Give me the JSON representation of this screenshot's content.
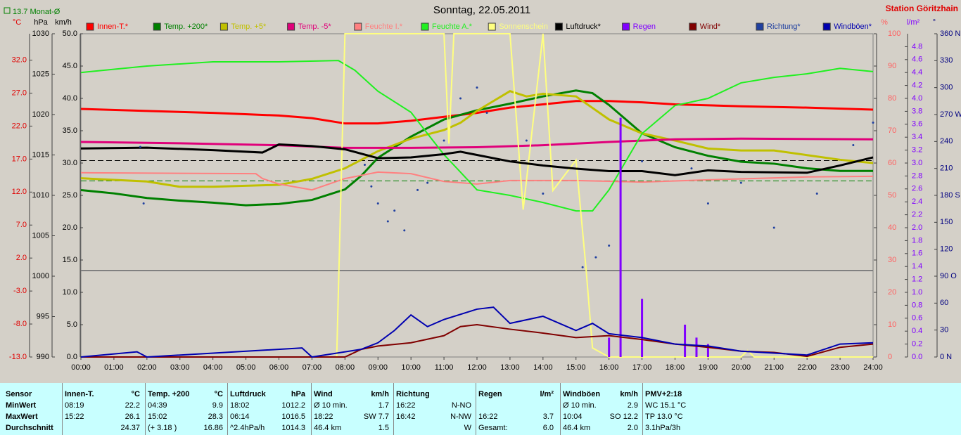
{
  "chart_data": {
    "type": "line",
    "title": "Sonntag, 22.05.2011",
    "station": "Station Göritzhain",
    "monthly_avg": {
      "value": 13.7,
      "label": "Monat-Ø"
    },
    "pressure_avg": 1014.3,
    "xlim": [
      0,
      24
    ],
    "xticks": [
      {
        "value": 0,
        "label": "00:00"
      },
      {
        "value": 1,
        "label": "01:00"
      },
      {
        "value": 2,
        "label": "02:00"
      },
      {
        "value": 3,
        "label": "03:00"
      },
      {
        "value": 4,
        "label": "04:00"
      },
      {
        "value": 5,
        "label": "05:00"
      },
      {
        "value": 6,
        "label": "06:00"
      },
      {
        "value": 7,
        "label": "07:00"
      },
      {
        "value": 8,
        "label": "08:00"
      },
      {
        "value": 9,
        "label": "09:00"
      },
      {
        "value": 10,
        "label": "10:00"
      },
      {
        "value": 11,
        "label": "11:00"
      },
      {
        "value": 12,
        "label": "12:00"
      },
      {
        "value": 13,
        "label": "13:00"
      },
      {
        "value": 14,
        "label": "14:00"
      },
      {
        "value": 15,
        "label": "15:00"
      },
      {
        "value": 16,
        "label": "16:00"
      },
      {
        "value": 17,
        "label": "17:00"
      },
      {
        "value": 18,
        "label": "18:00"
      },
      {
        "value": 19,
        "label": "19:00"
      },
      {
        "value": 20,
        "label": "20:00"
      },
      {
        "value": 21,
        "label": "21:00"
      },
      {
        "value": 22,
        "label": "22:00"
      },
      {
        "value": 23,
        "label": "23:00"
      },
      {
        "value": 24,
        "label": "24:00"
      }
    ],
    "axes": [
      {
        "label": "°C",
        "color": "#e00000",
        "ylim": [
          -13,
          36
        ],
        "yticks": [
          {
            "value": -13,
            "label": "-13.0"
          },
          {
            "value": -8,
            "label": "-8.0"
          },
          {
            "value": -3,
            "label": "-3.0"
          },
          {
            "value": 2,
            "label": "2.0"
          },
          {
            "value": 7,
            "label": "7.0"
          },
          {
            "value": 12,
            "label": "12.0"
          },
          {
            "value": 17,
            "label": "17.0"
          },
          {
            "value": 22,
            "label": "22.0"
          },
          {
            "value": 27,
            "label": "27.0"
          },
          {
            "value": 32,
            "label": "32.0"
          }
        ]
      },
      {
        "label": "hPa",
        "color": "#000000",
        "ylim": [
          990,
          1030
        ],
        "yticks": [
          990,
          995,
          1000,
          1005,
          1010,
          1015,
          1020,
          1025,
          1030
        ]
      },
      {
        "label": "km/h",
        "color": "#000000",
        "ylim": [
          0,
          50
        ],
        "yticks": [
          {
            "value": 0,
            "label": "0.0"
          },
          {
            "value": 5,
            "label": "5.0"
          },
          {
            "value": 10,
            "label": "10.0"
          },
          {
            "value": 15,
            "label": "15.0"
          },
          {
            "value": 20,
            "label": "20.0"
          },
          {
            "value": 25,
            "label": "25.0"
          },
          {
            "value": 30,
            "label": "30.0"
          },
          {
            "value": 35,
            "label": "35.0"
          },
          {
            "value": 40,
            "label": "40.0"
          },
          {
            "value": 45,
            "label": "45.0"
          },
          {
            "value": 50,
            "label": "50.0"
          }
        ]
      },
      {
        "label": "%",
        "color": "#ff6060",
        "ylim": [
          0,
          100
        ],
        "yticks": [
          0,
          10,
          20,
          30,
          40,
          50,
          60,
          70,
          80,
          90,
          100
        ]
      },
      {
        "label": "l/m²",
        "color": "#8000ff",
        "ylim": [
          0,
          5
        ],
        "yticks": [
          {
            "value": 0,
            "label": "0.0"
          },
          0.2,
          0.4,
          0.6,
          0.8,
          {
            "value": 1,
            "label": "1.0"
          },
          1.2,
          1.4,
          1.6,
          1.8,
          {
            "value": 2,
            "label": "2.0"
          },
          2.2,
          2.4,
          2.6,
          2.8,
          {
            "value": 3,
            "label": "3.0"
          },
          3.2,
          3.4,
          3.6,
          3.8,
          {
            "value": 4,
            "label": "4.0"
          },
          4.2,
          4.4,
          4.6,
          4.8
        ]
      },
      {
        "label": "°",
        "color": "#000080",
        "ylim": [
          0,
          360
        ],
        "yticks": [
          {
            "value": 0,
            "label": "0 N"
          },
          30,
          60,
          {
            "value": 90,
            "label": "90 O"
          },
          120,
          150,
          {
            "value": 180,
            "label": "180 S"
          },
          210,
          240,
          {
            "value": 270,
            "label": "270 W"
          },
          300,
          330,
          {
            "value": 360,
            "label": "360 N"
          }
        ]
      }
    ],
    "series": [
      {
        "name": "Innen-T.*",
        "color": "#ff0000",
        "axis": "°C",
        "x": [
          0,
          2,
          4,
          6,
          7,
          8,
          9,
          10,
          11,
          12,
          13,
          14,
          15,
          16,
          17,
          18,
          20,
          22,
          24
        ],
        "values": [
          24.6,
          24.3,
          24.0,
          23.6,
          23.2,
          22.4,
          22.4,
          22.8,
          23.4,
          24.0,
          24.8,
          25.3,
          25.8,
          25.8,
          25.6,
          25.3,
          25.0,
          24.8,
          24.5
        ]
      },
      {
        "name": "Temp. +200*",
        "color": "#008000",
        "axis": "°C",
        "x": [
          0,
          1,
          2,
          3,
          4,
          5,
          6,
          7,
          8,
          8.5,
          9,
          10,
          11,
          12,
          13,
          14,
          15,
          15.5,
          16,
          17,
          18,
          19,
          20,
          21,
          22,
          23,
          24
        ],
        "values": [
          12.3,
          11.8,
          11.1,
          10.7,
          10.4,
          10.0,
          10.2,
          10.8,
          12.4,
          14.5,
          17.2,
          20.4,
          23.0,
          24.4,
          25.4,
          26.5,
          27.4,
          27.0,
          25.2,
          20.9,
          18.8,
          17.5,
          16.6,
          16.3,
          15.6,
          15.2,
          15.2
        ]
      },
      {
        "name": "Temp. +5*",
        "color": "#c0c000",
        "axis": "°C",
        "x": [
          0,
          2,
          3,
          4,
          6,
          7,
          8,
          9,
          10,
          11,
          11.5,
          12,
          12.5,
          13,
          13.5,
          14,
          15,
          16,
          17,
          18,
          19,
          20,
          21,
          22,
          23,
          24
        ],
        "values": [
          14.1,
          13.6,
          12.8,
          12.8,
          13.1,
          14.0,
          15.6,
          18.2,
          20.1,
          21.4,
          22.5,
          24.3,
          25.8,
          27.3,
          26.5,
          26.9,
          26.5,
          23.0,
          20.9,
          19.8,
          18.6,
          18.3,
          18.3,
          17.6,
          16.9,
          16.4
        ]
      },
      {
        "name": "Temp. -5*",
        "color": "#e0007a",
        "axis": "°C",
        "x": [
          0,
          3,
          6,
          8,
          10,
          12,
          14,
          16,
          18,
          20,
          24
        ],
        "values": [
          19.6,
          19.4,
          19.1,
          18.7,
          18.7,
          18.8,
          19.1,
          19.6,
          20.0,
          20.1,
          20.0
        ]
      },
      {
        "name": "Feuchte I.*",
        "color": "#ff8080",
        "axis": "%",
        "x": [
          0,
          5.3,
          5.5,
          6,
          7,
          8,
          9,
          10,
          11,
          12,
          13,
          15,
          17,
          19,
          22,
          24
        ],
        "values": [
          57.0,
          56.7,
          55.2,
          53.5,
          51.7,
          55.2,
          57.2,
          56.7,
          54.3,
          53.5,
          54.6,
          54.6,
          54.1,
          54.8,
          55.7,
          55.9
        ]
      },
      {
        "name": "Feuchte A.*",
        "color": "#20f020",
        "axis": "%",
        "x": [
          0,
          2,
          4,
          6,
          7.8,
          8.3,
          9,
          10,
          10.5,
          11,
          11.5,
          12,
          13,
          14,
          15,
          15.5,
          16,
          17,
          18,
          19,
          20,
          21,
          22,
          23,
          24
        ],
        "values": [
          88.0,
          90.0,
          91.3,
          91.3,
          91.7,
          88.7,
          82.2,
          75.7,
          69.1,
          62.6,
          57.2,
          51.7,
          50.0,
          47.8,
          45.2,
          45.2,
          51.7,
          69.1,
          77.8,
          80.0,
          84.8,
          86.5,
          87.6,
          89.3,
          88.3
        ]
      },
      {
        "name": "Sonnenschein",
        "color": "#ffff80",
        "axis": "%",
        "x": [
          0,
          7.75,
          8,
          11,
          11.15,
          11.3,
          13,
          13.4,
          14,
          14.3,
          15,
          15.3,
          15.5,
          16,
          20,
          20.2,
          20.4,
          24
        ],
        "values": [
          0,
          0,
          100,
          100,
          66,
          100,
          100,
          45.6,
          100,
          51.5,
          60.9,
          27.8,
          2.8,
          0,
          0,
          2,
          0,
          0
        ]
      },
      {
        "name": "Luftdruck*",
        "color": "#000000",
        "axis": "hPa",
        "x": [
          0,
          2,
          4,
          5.5,
          6,
          7,
          8,
          9,
          10,
          11,
          11.5,
          12,
          13,
          14,
          15,
          16,
          17,
          18,
          19,
          20,
          22,
          23,
          24
        ],
        "values": [
          1015.8,
          1015.9,
          1015.6,
          1015.3,
          1016.3,
          1016.1,
          1015.7,
          1014.6,
          1014.7,
          1015.1,
          1015.4,
          1015.0,
          1014.2,
          1013.7,
          1013.3,
          1013.0,
          1013.0,
          1012.5,
          1013.1,
          1012.9,
          1012.8,
          1013.7,
          1014.7
        ]
      },
      {
        "name": "Regen",
        "color": "#8000ff",
        "axis": "l/m²",
        "type": "bar",
        "x": [
          16.0,
          16.35,
          17.0,
          18.3,
          18.65,
          19.0
        ],
        "values": [
          0.3,
          3.7,
          0.9,
          0.5,
          0.3,
          0.2
        ]
      },
      {
        "name": "Wind*",
        "color": "#800000",
        "axis": "km/h",
        "x": [
          0,
          8,
          8.5,
          9,
          10,
          11,
          11.5,
          12,
          13,
          14,
          15,
          16,
          17,
          18,
          19,
          20,
          21,
          22,
          23,
          24
        ],
        "values": [
          0,
          0,
          1.2,
          1.7,
          2.2,
          3.3,
          4.7,
          5.0,
          4.3,
          3.7,
          3.0,
          3.3,
          2.7,
          2.0,
          1.5,
          0.9,
          0.7,
          0.1,
          1.5,
          2.0
        ]
      },
      {
        "name": "Richtung*",
        "color": "#2040a0",
        "axis": "°",
        "type": "scatter",
        "x": [
          1.8,
          1.9,
          8.6,
          8.8,
          9.0,
          9.3,
          9.5,
          9.8,
          10.2,
          10.5,
          11.0,
          11.5,
          12.0,
          12.3,
          13.5,
          14.0,
          15.2,
          15.6,
          16.0,
          17.0,
          18.5,
          19.0,
          20.0,
          21.0,
          22.3,
          23.4,
          24
        ],
        "values": [
          234,
          171,
          214,
          190,
          171,
          151,
          163,
          141,
          186,
          194,
          241,
          288,
          300,
          272,
          241,
          182,
          100,
          111,
          124,
          218,
          210,
          171,
          194,
          144,
          182,
          236,
          261
        ]
      },
      {
        "name": "Windböen*",
        "color": "#0000b0",
        "axis": "km/h",
        "x": [
          0,
          1.7,
          2,
          6.7,
          7,
          8.5,
          9,
          9.5,
          10,
          10.5,
          11,
          12,
          12.5,
          13,
          14,
          15,
          15.5,
          16,
          17,
          18,
          19,
          20,
          22,
          23,
          24
        ],
        "values": [
          0,
          0.8,
          0,
          1.4,
          0,
          1.2,
          2.2,
          4.1,
          6.5,
          4.7,
          5.8,
          7.4,
          7.7,
          5.2,
          6.3,
          4.1,
          5.2,
          3.6,
          3.0,
          2.0,
          1.7,
          0.9,
          0.3,
          2.0,
          2.2
        ]
      }
    ]
  },
  "table": {
    "labels": [
      "Sensor",
      "MinWert",
      "MaxWert",
      "Durchschnitt"
    ],
    "groups": [
      {
        "title": "Innen-T.",
        "unit": "°C",
        "rows": [
          [
            "08:19",
            "22.2"
          ],
          [
            "15:22",
            "26.1"
          ],
          [
            null,
            "24.37"
          ]
        ]
      },
      {
        "title": "Temp. +200",
        "unit": "°C",
        "rows": [
          [
            "04:39",
            "9.9"
          ],
          [
            "15:02",
            "28.3"
          ],
          [
            "(+ 3.18 )",
            "16.86"
          ]
        ]
      },
      {
        "title": "Luftdruck",
        "unit": "hPa",
        "rows": [
          [
            "18:02",
            "1012.2"
          ],
          [
            "06:14",
            "1016.5"
          ],
          [
            "^2.4hPa/h",
            "1014.3"
          ]
        ]
      },
      {
        "title": "Wind",
        "unit": "km/h",
        "rows": [
          [
            "Ø 10 min.",
            "1.7"
          ],
          [
            "18:22",
            "SW 7.7"
          ],
          [
            "46.4 km",
            "1.5"
          ]
        ]
      },
      {
        "title": "Richtung",
        "unit": null,
        "rows": [
          [
            "16:22",
            "N-NO"
          ],
          [
            "16:42",
            "N-NW"
          ],
          [
            null,
            "W"
          ]
        ]
      },
      {
        "title": "Regen",
        "unit": "l/m²",
        "rows": [
          [
            null,
            null
          ],
          [
            "16:22",
            "3.7"
          ],
          [
            "Gesamt:",
            "6.0"
          ]
        ]
      },
      {
        "title": "Windböen",
        "unit": "km/h",
        "rows": [
          [
            "Ø 10 min.",
            "2.9"
          ],
          [
            "10:04",
            "SO 12.2"
          ],
          [
            "46.4 km",
            "2.0"
          ]
        ]
      },
      {
        "title": "PMV+2:18",
        "unit": null,
        "rows": [
          [
            "WC 15.1 °C",
            null
          ],
          [
            "TP 13.0 °C",
            null
          ],
          [
            "3.1hPa/3h",
            null
          ]
        ]
      }
    ]
  }
}
